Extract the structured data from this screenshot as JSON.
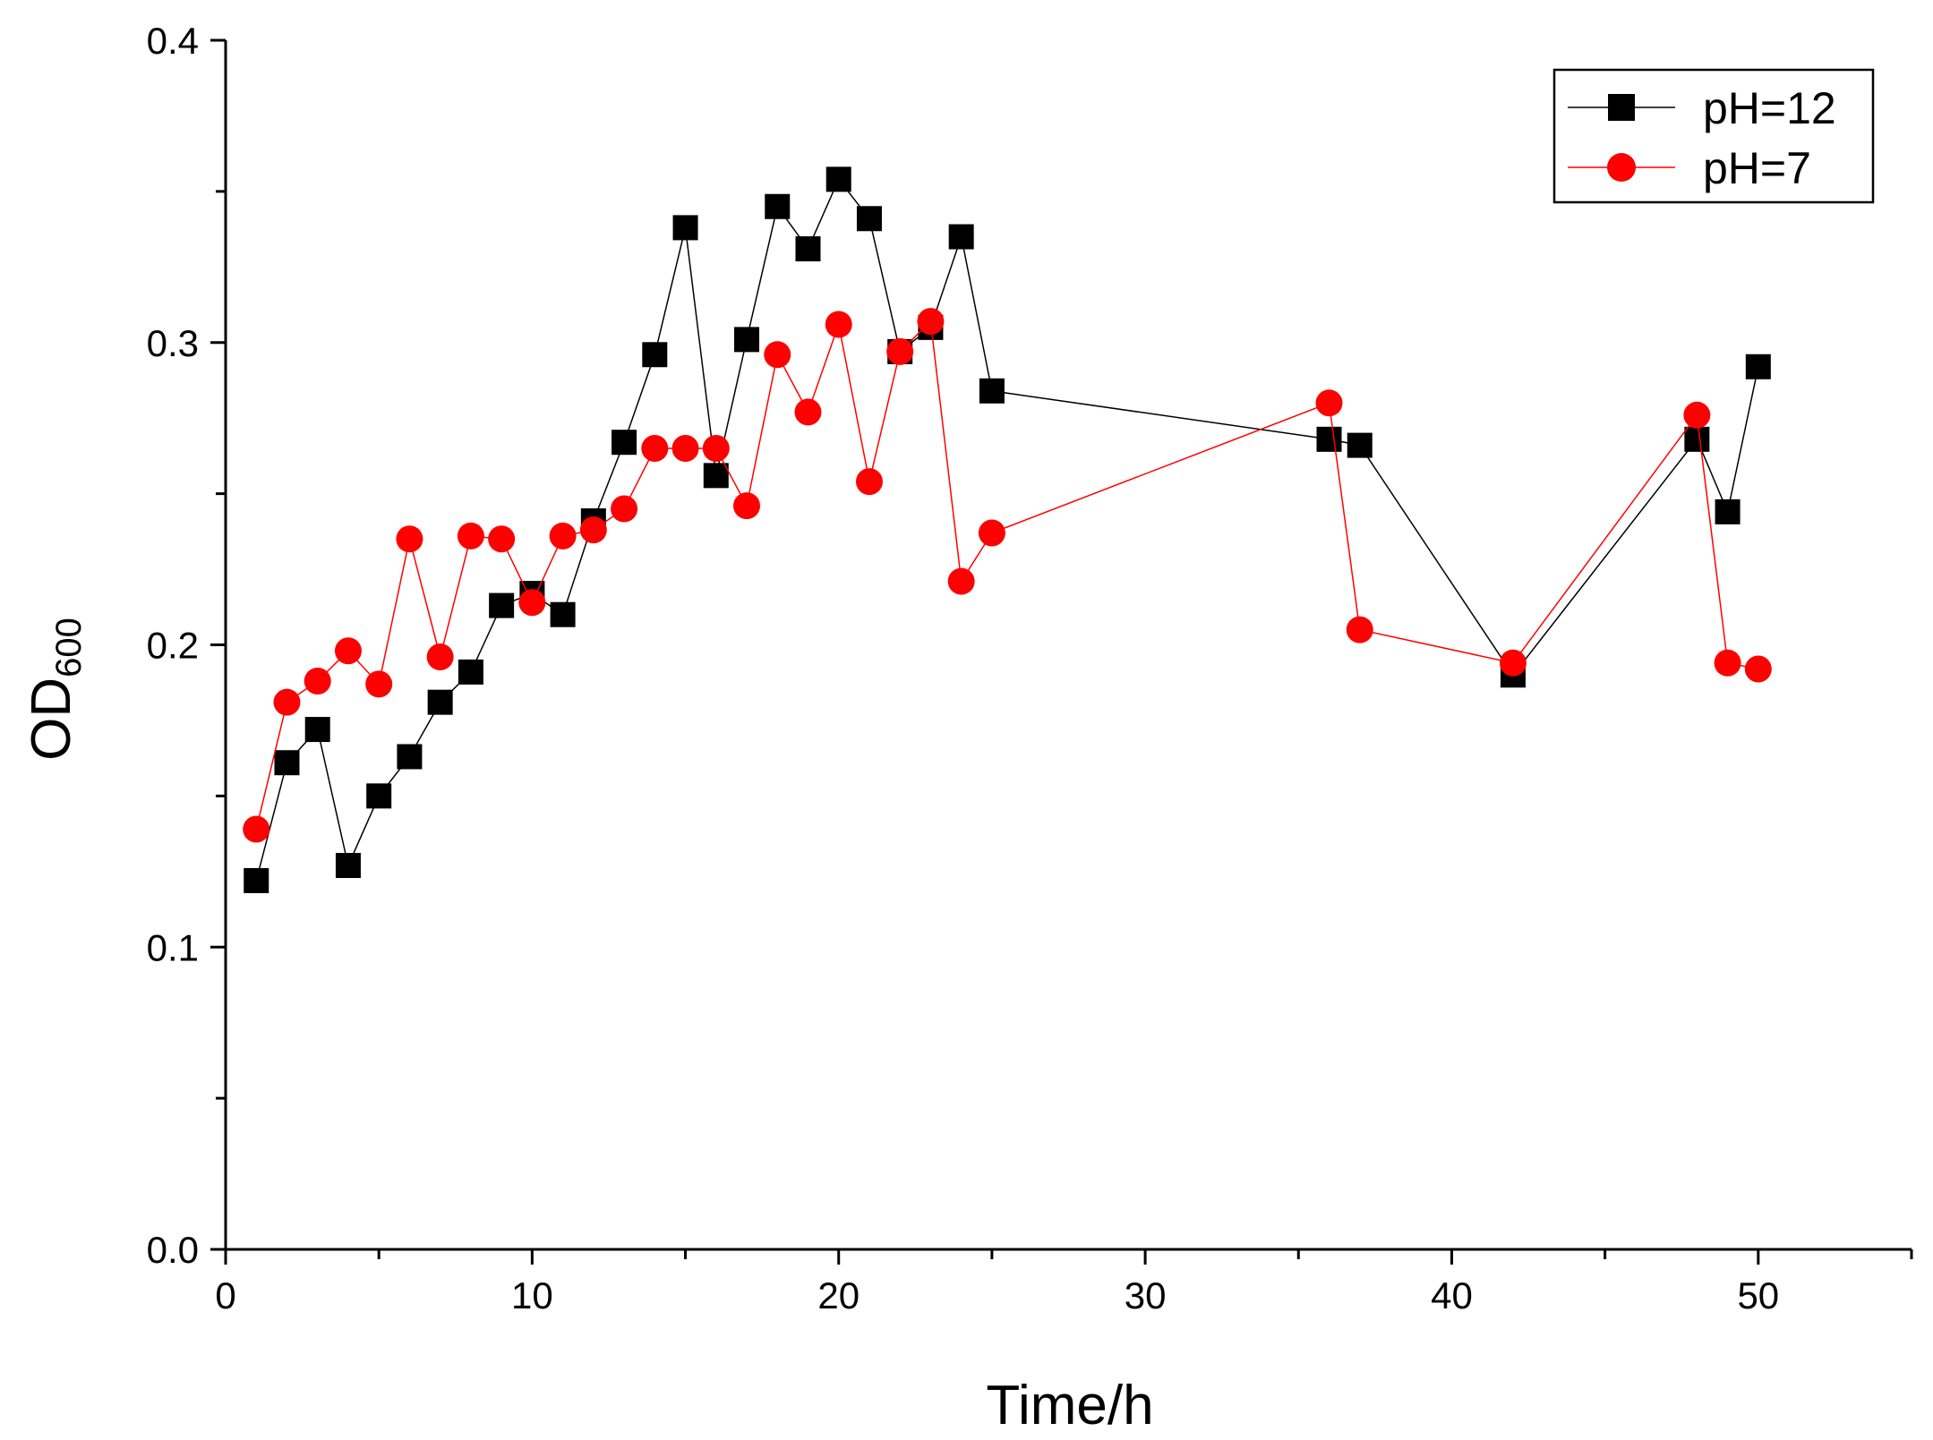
{
  "chart_data": {
    "type": "scatter",
    "title": "",
    "xlabel": "Time/h",
    "ylabel_main": "OD",
    "ylabel_sub": "600",
    "xlim": [
      0,
      55
    ],
    "ylim": [
      0,
      0.4
    ],
    "xticks": [
      0,
      10,
      20,
      30,
      40,
      50
    ],
    "xtick_labels": [
      "0",
      "10",
      "20",
      "30",
      "40",
      "50"
    ],
    "yticks": [
      0,
      0.1,
      0.2,
      0.3,
      0.4
    ],
    "ytick_labels": [
      "0.0",
      "0.1",
      "0.2",
      "0.3",
      "0.4"
    ],
    "x_minor_step": 5,
    "y_minor_step": 0.05,
    "grid": false,
    "legend_position": "top-right",
    "series": [
      {
        "name": "pH=12",
        "color": "#000000",
        "marker": "square",
        "x": [
          1,
          2,
          3,
          4,
          5,
          6,
          7,
          8,
          9,
          10,
          11,
          12,
          13,
          14,
          15,
          16,
          17,
          18,
          19,
          20,
          21,
          22,
          23,
          24,
          25,
          36,
          37,
          42,
          48,
          49,
          50
        ],
        "y": [
          0.122,
          0.161,
          0.172,
          0.127,
          0.15,
          0.163,
          0.181,
          0.191,
          0.213,
          0.217,
          0.21,
          0.241,
          0.267,
          0.296,
          0.338,
          0.256,
          0.301,
          0.345,
          0.331,
          0.354,
          0.341,
          0.297,
          0.305,
          0.335,
          0.284,
          0.268,
          0.266,
          0.19,
          0.268,
          0.244,
          0.292
        ]
      },
      {
        "name": "pH=7",
        "color": "#ff0000",
        "marker": "circle",
        "x": [
          1,
          2,
          3,
          4,
          5,
          6,
          7,
          8,
          9,
          10,
          11,
          12,
          13,
          14,
          15,
          16,
          17,
          18,
          19,
          20,
          21,
          22,
          23,
          24,
          25,
          36,
          37,
          42,
          48,
          49,
          50
        ],
        "y": [
          0.139,
          0.181,
          0.188,
          0.198,
          0.187,
          0.235,
          0.196,
          0.236,
          0.235,
          0.214,
          0.236,
          0.238,
          0.245,
          0.265,
          0.265,
          0.265,
          0.246,
          0.296,
          0.277,
          0.306,
          0.254,
          0.297,
          0.307,
          0.221,
          0.237,
          0.28,
          0.205,
          0.194,
          0.276,
          0.194,
          0.192
        ]
      }
    ]
  }
}
